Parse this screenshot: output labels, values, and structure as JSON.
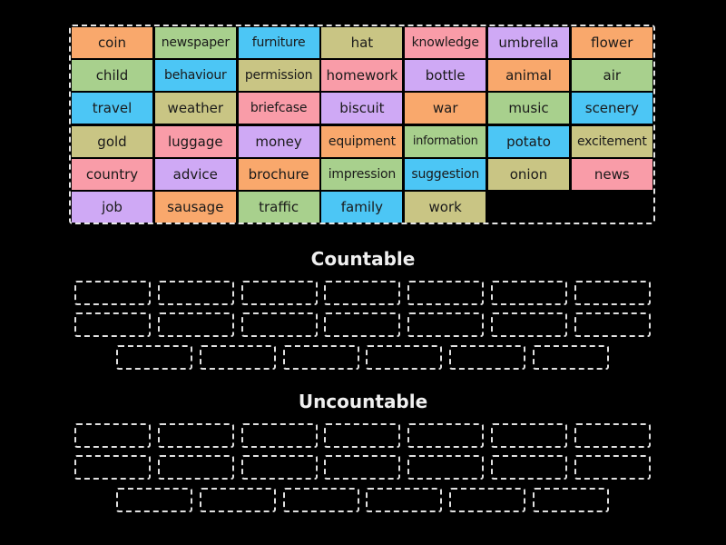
{
  "colors": {
    "orange": "#f9a86c",
    "green": "#a8d08d",
    "blue": "#4cc6f5",
    "olive": "#c9c584",
    "pink": "#f99ca8",
    "purple": "#cfa9f5",
    "background": "#000000"
  },
  "tray": {
    "tiles": [
      {
        "label": "coin",
        "color": "orange"
      },
      {
        "label": "newspaper",
        "color": "green"
      },
      {
        "label": "furniture",
        "color": "blue"
      },
      {
        "label": "hat",
        "color": "olive"
      },
      {
        "label": "knowledge",
        "color": "pink"
      },
      {
        "label": "umbrella",
        "color": "purple"
      },
      {
        "label": "flower",
        "color": "orange"
      },
      {
        "label": "child",
        "color": "green"
      },
      {
        "label": "behaviour",
        "color": "blue"
      },
      {
        "label": "permission",
        "color": "olive"
      },
      {
        "label": "homework",
        "color": "pink"
      },
      {
        "label": "bottle",
        "color": "purple"
      },
      {
        "label": "animal",
        "color": "orange"
      },
      {
        "label": "air",
        "color": "green"
      },
      {
        "label": "travel",
        "color": "blue"
      },
      {
        "label": "weather",
        "color": "olive"
      },
      {
        "label": "briefcase",
        "color": "pink"
      },
      {
        "label": "biscuit",
        "color": "purple"
      },
      {
        "label": "war",
        "color": "orange"
      },
      {
        "label": "music",
        "color": "green"
      },
      {
        "label": "scenery",
        "color": "blue"
      },
      {
        "label": "gold",
        "color": "olive"
      },
      {
        "label": "luggage",
        "color": "pink"
      },
      {
        "label": "money",
        "color": "purple"
      },
      {
        "label": "equipment",
        "color": "orange"
      },
      {
        "label": "information",
        "color": "green"
      },
      {
        "label": "potato",
        "color": "blue"
      },
      {
        "label": "excitement",
        "color": "olive"
      },
      {
        "label": "country",
        "color": "pink"
      },
      {
        "label": "advice",
        "color": "purple"
      },
      {
        "label": "brochure",
        "color": "orange"
      },
      {
        "label": "impression",
        "color": "green"
      },
      {
        "label": "suggestion",
        "color": "blue"
      },
      {
        "label": "onion",
        "color": "olive"
      },
      {
        "label": "news",
        "color": "pink"
      },
      {
        "label": "job",
        "color": "purple"
      },
      {
        "label": "sausage",
        "color": "orange"
      },
      {
        "label": "traffic",
        "color": "green"
      },
      {
        "label": "family",
        "color": "blue"
      },
      {
        "label": "work",
        "color": "olive"
      }
    ]
  },
  "groups": [
    {
      "title": "Countable",
      "slot_count": 20
    },
    {
      "title": "Uncountable",
      "slot_count": 20
    }
  ]
}
